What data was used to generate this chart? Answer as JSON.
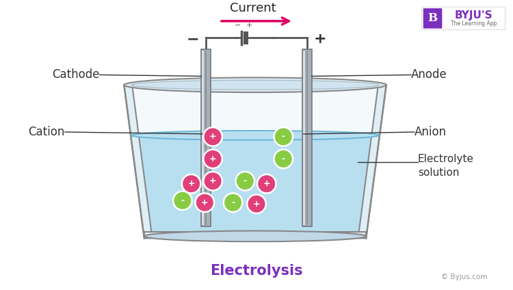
{
  "bg_color": "#ffffff",
  "title": "Electrolysis",
  "title_color": "#7b2fbe",
  "title_fontsize": 15,
  "beaker_fill_color": "#b8dff0",
  "beaker_upper_color": "#ddeef8",
  "beaker_edge_color": "#888888",
  "electrode_color": "#a8b0b8",
  "electrode_highlight": "#d8dde2",
  "electrode_shadow": "#707880",
  "wire_color": "#555555",
  "current_color": "#e0005e",
  "cation_color": "#e0407a",
  "anion_color": "#88cc44",
  "label_color": "#333333",
  "label_fontsize": 12,
  "current_label": "Current",
  "cathode_label": "Cathode",
  "anode_label": "Anode",
  "cation_label": "Cation",
  "anion_label": "Anion",
  "electrolyte_label": "Electrolyte\nsolution",
  "copyright": "© Byjus.com",
  "ions": [
    [
      310,
      228,
      "+"
    ],
    [
      415,
      228,
      "-"
    ],
    [
      310,
      195,
      "+"
    ],
    [
      415,
      195,
      "-"
    ],
    [
      278,
      158,
      "+"
    ],
    [
      310,
      162,
      "+"
    ],
    [
      358,
      162,
      "-"
    ],
    [
      390,
      158,
      "+"
    ],
    [
      265,
      133,
      "-"
    ],
    [
      298,
      130,
      "+"
    ],
    [
      340,
      130,
      "-"
    ],
    [
      375,
      128,
      "+"
    ]
  ],
  "ion_size": 14
}
